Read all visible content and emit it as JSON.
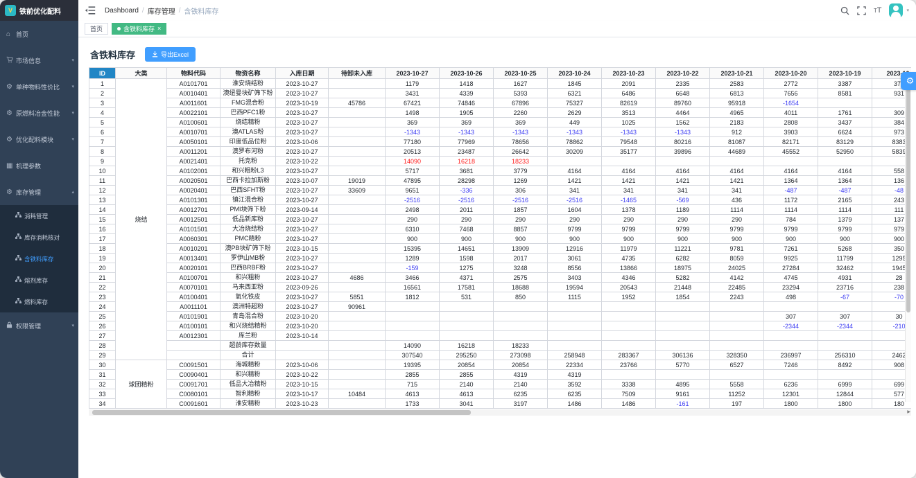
{
  "app": {
    "logo_text": "铁前优化配料"
  },
  "colors": {
    "accent_blue": "#409eff",
    "tag_green": "#42b983",
    "sidebar_bg": "#304156",
    "submenu_bg": "#1f2d3d",
    "id_header_bg": "#2186c5",
    "negative_value": "#3a3af2",
    "alert_value": "#ff1a1a",
    "avatar_teal": "#35c3c1"
  },
  "navbar": {
    "breadcrumb": [
      "Dashboard",
      "库存管理",
      "含铁料库存"
    ],
    "icons": [
      "hamburger-icon",
      "search-icon",
      "fullscreen-icon",
      "font-size-icon",
      "avatar",
      "caret-down-icon"
    ]
  },
  "tags": [
    {
      "label": "首页",
      "active": false,
      "closable": false
    },
    {
      "label": "含铁料库存",
      "active": true,
      "closable": true
    }
  ],
  "sidebar": {
    "items": [
      {
        "id": "home",
        "label": "首页",
        "icon": "home-icon"
      },
      {
        "id": "market-info",
        "label": "市场信息",
        "icon": "cart-icon",
        "arrow": "down"
      },
      {
        "id": "material-cost-ratio",
        "label": "单种物料性价比",
        "icon": "circle-gear-icon",
        "arrow": "down"
      },
      {
        "id": "raw-fuel-metallurgy",
        "label": "原燃料冶金性能",
        "icon": "circle-gear-icon",
        "arrow": "down"
      },
      {
        "id": "optimize-burden",
        "label": "优化配料模块",
        "icon": "circle-gear-icon",
        "arrow": "down"
      },
      {
        "id": "mechanism-params",
        "label": "机理参数",
        "icon": "grid-icon"
      },
      {
        "id": "inventory-mgmt",
        "label": "库存管理",
        "icon": "circle-gear-icon",
        "arrow": "up",
        "expanded": true,
        "children": [
          {
            "id": "consumption-mgmt",
            "label": "消耗管理",
            "icon": "tree-icon"
          },
          {
            "id": "inventory-consumption-check",
            "label": "库存消耗核对",
            "icon": "tree-icon"
          },
          {
            "id": "iron-material-inventory",
            "label": "含铁料库存",
            "icon": "tree-icon",
            "active": true
          },
          {
            "id": "flux-inventory",
            "label": "熔剂库存",
            "icon": "tree-icon"
          },
          {
            "id": "fuel-inventory",
            "label": "燃料库存",
            "icon": "tree-icon"
          }
        ]
      },
      {
        "id": "permission-mgmt",
        "label": "权限管理",
        "icon": "lock-icon",
        "arrow": "down"
      }
    ]
  },
  "panel": {
    "title": "含铁料库存",
    "export_label": "导出Excel"
  },
  "table": {
    "headers": [
      "ID",
      "大类",
      "物料代码",
      "物资名称",
      "入库日期",
      "待卸未入库",
      "2023-10-27",
      "2023-10-26",
      "2023-10-25",
      "2023-10-24",
      "2023-10-23",
      "2023-10-22",
      "2023-10-21",
      "2023-10-20",
      "2023-10-19",
      "2023-10-"
    ],
    "groups": [
      {
        "category": "烧结",
        "rows": [
          {
            "id": "1",
            "code": "A0101701",
            "name": "淮安烧结粉",
            "date": "2023-10-27",
            "pending": "",
            "values": [
              "1179",
              "1418",
              "1627",
              "1845",
              "2091",
              "2335",
              "2583",
              "2772",
              "3387",
              "373"
            ]
          },
          {
            "id": "2",
            "code": "A0010401",
            "name": "澳纽曼块矿筛下粉",
            "date": "2023-10-27",
            "pending": "",
            "values": [
              "3431",
              "4339",
              "5393",
              "6321",
              "6486",
              "6648",
              "6813",
              "7656",
              "8581",
              "931"
            ]
          },
          {
            "id": "3",
            "code": "A0011601",
            "name": "FMG混合粉",
            "date": "2023-10-19",
            "pending": "45786",
            "values": [
              "67421",
              "74846",
              "67896",
              "75327",
              "82619",
              "89760",
              "95918",
              "-1654",
              "",
              ""
            ]
          },
          {
            "id": "4",
            "code": "A0022101",
            "name": "巴西PFC1粉",
            "date": "2023-10-27",
            "pending": "",
            "values": [
              "1498",
              "1905",
              "2260",
              "2629",
              "3513",
              "4464",
              "4965",
              "4011",
              "1761",
              "309"
            ]
          },
          {
            "id": "5",
            "code": "A0100601",
            "name": "烧结精粉",
            "date": "2023-10-27",
            "pending": "",
            "values": [
              "369",
              "369",
              "369",
              "449",
              "1025",
              "1562",
              "2183",
              "2808",
              "3437",
              "384"
            ]
          },
          {
            "id": "6",
            "code": "A0010701",
            "name": "澳ATLAS粉",
            "date": "2023-10-27",
            "pending": "",
            "values": [
              "-1343",
              "-1343",
              "-1343",
              "-1343",
              "-1343",
              "-1343",
              "912",
              "3903",
              "6624",
              "973"
            ]
          },
          {
            "id": "7",
            "code": "A0050101",
            "name": "印度低品位粉",
            "date": "2023-10-06",
            "pending": "",
            "values": [
              "77180",
              "77969",
              "78656",
              "78862",
              "79548",
              "80216",
              "81087",
              "82171",
              "83129",
              "8383"
            ]
          },
          {
            "id": "8",
            "code": "A0011201",
            "name": "澳罗布河粉",
            "date": "2023-10-27",
            "pending": "",
            "values": [
              "20513",
              "23487",
              "26642",
              "30209",
              "35177",
              "39896",
              "44689",
              "45552",
              "52950",
              "5839"
            ]
          },
          {
            "id": "9",
            "code": "A0021401",
            "name": "托克粉",
            "date": "2023-10-22",
            "pending": "",
            "red": true,
            "values": [
              "14090",
              "16218",
              "18233",
              "",
              "",
              "",
              "",
              "",
              "",
              ""
            ]
          },
          {
            "id": "10",
            "code": "A0102001",
            "name": "和兴粗粉L3",
            "date": "2023-10-27",
            "pending": "",
            "values": [
              "5717",
              "3681",
              "3779",
              "4164",
              "4164",
              "4164",
              "4164",
              "4164",
              "4164",
              "558"
            ]
          },
          {
            "id": "11",
            "code": "A0020501",
            "name": "巴西卡拉加斯粉",
            "date": "2023-10-07",
            "pending": "19019",
            "values": [
              "47895",
              "28298",
              "1269",
              "1421",
              "1421",
              "1421",
              "1421",
              "1364",
              "1364",
              "136"
            ]
          },
          {
            "id": "12",
            "code": "A0020401",
            "name": "巴西SFHT粉",
            "date": "2023-10-27",
            "pending": "33609",
            "values": [
              "9651",
              "-336",
              "306",
              "341",
              "341",
              "341",
              "341",
              "-487",
              "-487",
              "-48"
            ]
          },
          {
            "id": "13",
            "code": "A0101301",
            "name": "镇江混合粉",
            "date": "2023-10-27",
            "pending": "",
            "values": [
              "-2516",
              "-2516",
              "-2516",
              "-2516",
              "-1465",
              "-569",
              "436",
              "1172",
              "2165",
              "243"
            ]
          },
          {
            "id": "14",
            "code": "A0012701",
            "name": "PMI块筛下粉",
            "date": "2023-09-14",
            "pending": "",
            "values": [
              "2498",
              "2011",
              "1857",
              "1604",
              "1378",
              "1189",
              "1114",
              "1114",
              "1114",
              "111"
            ]
          },
          {
            "id": "15",
            "code": "A0012501",
            "name": "低品新库粉",
            "date": "2023-10-27",
            "pending": "",
            "values": [
              "290",
              "290",
              "290",
              "290",
              "290",
              "290",
              "290",
              "784",
              "1379",
              "137"
            ]
          },
          {
            "id": "16",
            "code": "A0101501",
            "name": "大冶烧结粉",
            "date": "2023-10-27",
            "pending": "",
            "values": [
              "6310",
              "7468",
              "8857",
              "9799",
              "9799",
              "9799",
              "9799",
              "9799",
              "9799",
              "979"
            ]
          },
          {
            "id": "17",
            "code": "A0060301",
            "name": "PMC精粉",
            "date": "2023-10-27",
            "pending": "",
            "values": [
              "900",
              "900",
              "900",
              "900",
              "900",
              "900",
              "900",
              "900",
              "900",
              "900"
            ]
          },
          {
            "id": "18",
            "code": "A0010201",
            "name": "澳PB块矿筛下粉",
            "date": "2023-10-15",
            "pending": "",
            "values": [
              "15395",
              "14651",
              "13909",
              "12916",
              "11979",
              "11221",
              "9781",
              "7261",
              "5268",
              "350"
            ]
          },
          {
            "id": "19",
            "code": "A0013401",
            "name": "罗伊山MB粉",
            "date": "2023-10-27",
            "pending": "",
            "values": [
              "1289",
              "1598",
              "2017",
              "3061",
              "4735",
              "6282",
              "8059",
              "9925",
              "11799",
              "1295"
            ]
          },
          {
            "id": "20",
            "code": "A0020101",
            "name": "巴西BRBF粉",
            "date": "2023-10-27",
            "pending": "",
            "values": [
              "-159",
              "1275",
              "3248",
              "8556",
              "13866",
              "18975",
              "24025",
              "27284",
              "32462",
              "1945"
            ]
          },
          {
            "id": "21",
            "code": "A0100701",
            "name": "和兴粗粉",
            "date": "2023-10-27",
            "pending": "4686",
            "values": [
              "3466",
              "4371",
              "2575",
              "3403",
              "4346",
              "5282",
              "4142",
              "4745",
              "4931",
              "28"
            ]
          },
          {
            "id": "22",
            "code": "A0070101",
            "name": "马来西亚粉",
            "date": "2023-09-26",
            "pending": "",
            "values": [
              "16561",
              "17581",
              "18688",
              "19594",
              "20543",
              "21448",
              "22485",
              "23294",
              "23716",
              "238"
            ]
          },
          {
            "id": "23",
            "code": "A0100401",
            "name": "氧化铁皮",
            "date": "2023-10-27",
            "pending": "5851",
            "values": [
              "1812",
              "531",
              "850",
              "1115",
              "1952",
              "1854",
              "2243",
              "498",
              "-67",
              "-70"
            ]
          },
          {
            "id": "24",
            "code": "A0011101",
            "name": "澳洲特超粉",
            "date": "2023-10-27",
            "pending": "90961",
            "values": [
              "",
              "",
              "",
              "",
              "",
              "",
              "",
              "",
              "",
              ""
            ]
          },
          {
            "id": "25",
            "code": "A0101901",
            "name": "青岛混合粉",
            "date": "2023-10-20",
            "pending": "",
            "values": [
              "",
              "",
              "",
              "",
              "",
              "",
              "",
              "307",
              "307",
              "30"
            ]
          },
          {
            "id": "26",
            "code": "A0100101",
            "name": "和兴烧结精粉",
            "date": "2023-10-20",
            "pending": "",
            "values": [
              "",
              "",
              "",
              "",
              "",
              "",
              "",
              "-2344",
              "-2344",
              "-210"
            ]
          },
          {
            "id": "27",
            "code": "A0012301",
            "name": "库兰粉",
            "date": "2023-10-14",
            "pending": "",
            "values": [
              "",
              "",
              "",
              "",
              "",
              "",
              "",
              "",
              "",
              ""
            ]
          },
          {
            "id": "28",
            "code": "",
            "name": "超龄库存数量",
            "date": "",
            "pending": "",
            "values": [
              "14090",
              "16218",
              "18233",
              "",
              "",
              "",
              "",
              "",
              "",
              ""
            ]
          },
          {
            "id": "29",
            "code": "",
            "name": "合计",
            "date": "",
            "pending": "",
            "values": [
              "307540",
              "295250",
              "273098",
              "258948",
              "283367",
              "306136",
              "328350",
              "236997",
              "256310",
              "2462"
            ]
          }
        ]
      },
      {
        "category": "球团精粉",
        "rows": [
          {
            "id": "30",
            "code": "C0091501",
            "name": "海城精粉",
            "date": "2023-10-06",
            "pending": "",
            "values": [
              "19395",
              "20854",
              "20854",
              "22334",
              "23766",
              "5770",
              "6527",
              "7246",
              "8492",
              "908"
            ]
          },
          {
            "id": "31",
            "code": "C0090401",
            "name": "和兴精粉",
            "date": "2023-10-22",
            "pending": "",
            "values": [
              "2855",
              "2855",
              "4319",
              "4319",
              "",
              "",
              "",
              "",
              "",
              ""
            ]
          },
          {
            "id": "32",
            "code": "C0091701",
            "name": "低品大冶精粉",
            "date": "2023-10-15",
            "pending": "",
            "values": [
              "715",
              "2140",
              "2140",
              "3592",
              "3338",
              "4895",
              "5558",
              "6236",
              "6999",
              "699"
            ]
          },
          {
            "id": "33",
            "code": "C0080101",
            "name": "智利精粉",
            "date": "2023-10-17",
            "pending": "10484",
            "values": [
              "4613",
              "4613",
              "6235",
              "6235",
              "7509",
              "9161",
              "11252",
              "12301",
              "12844",
              "577"
            ]
          },
          {
            "id": "34",
            "code": "C0091601",
            "name": "淮安精粉",
            "date": "2023-10-23",
            "pending": "",
            "values": [
              "1733",
              "3041",
              "3197",
              "1486",
              "1486",
              "-161",
              "197",
              "1800",
              "1800",
              "180"
            ]
          }
        ]
      }
    ]
  }
}
